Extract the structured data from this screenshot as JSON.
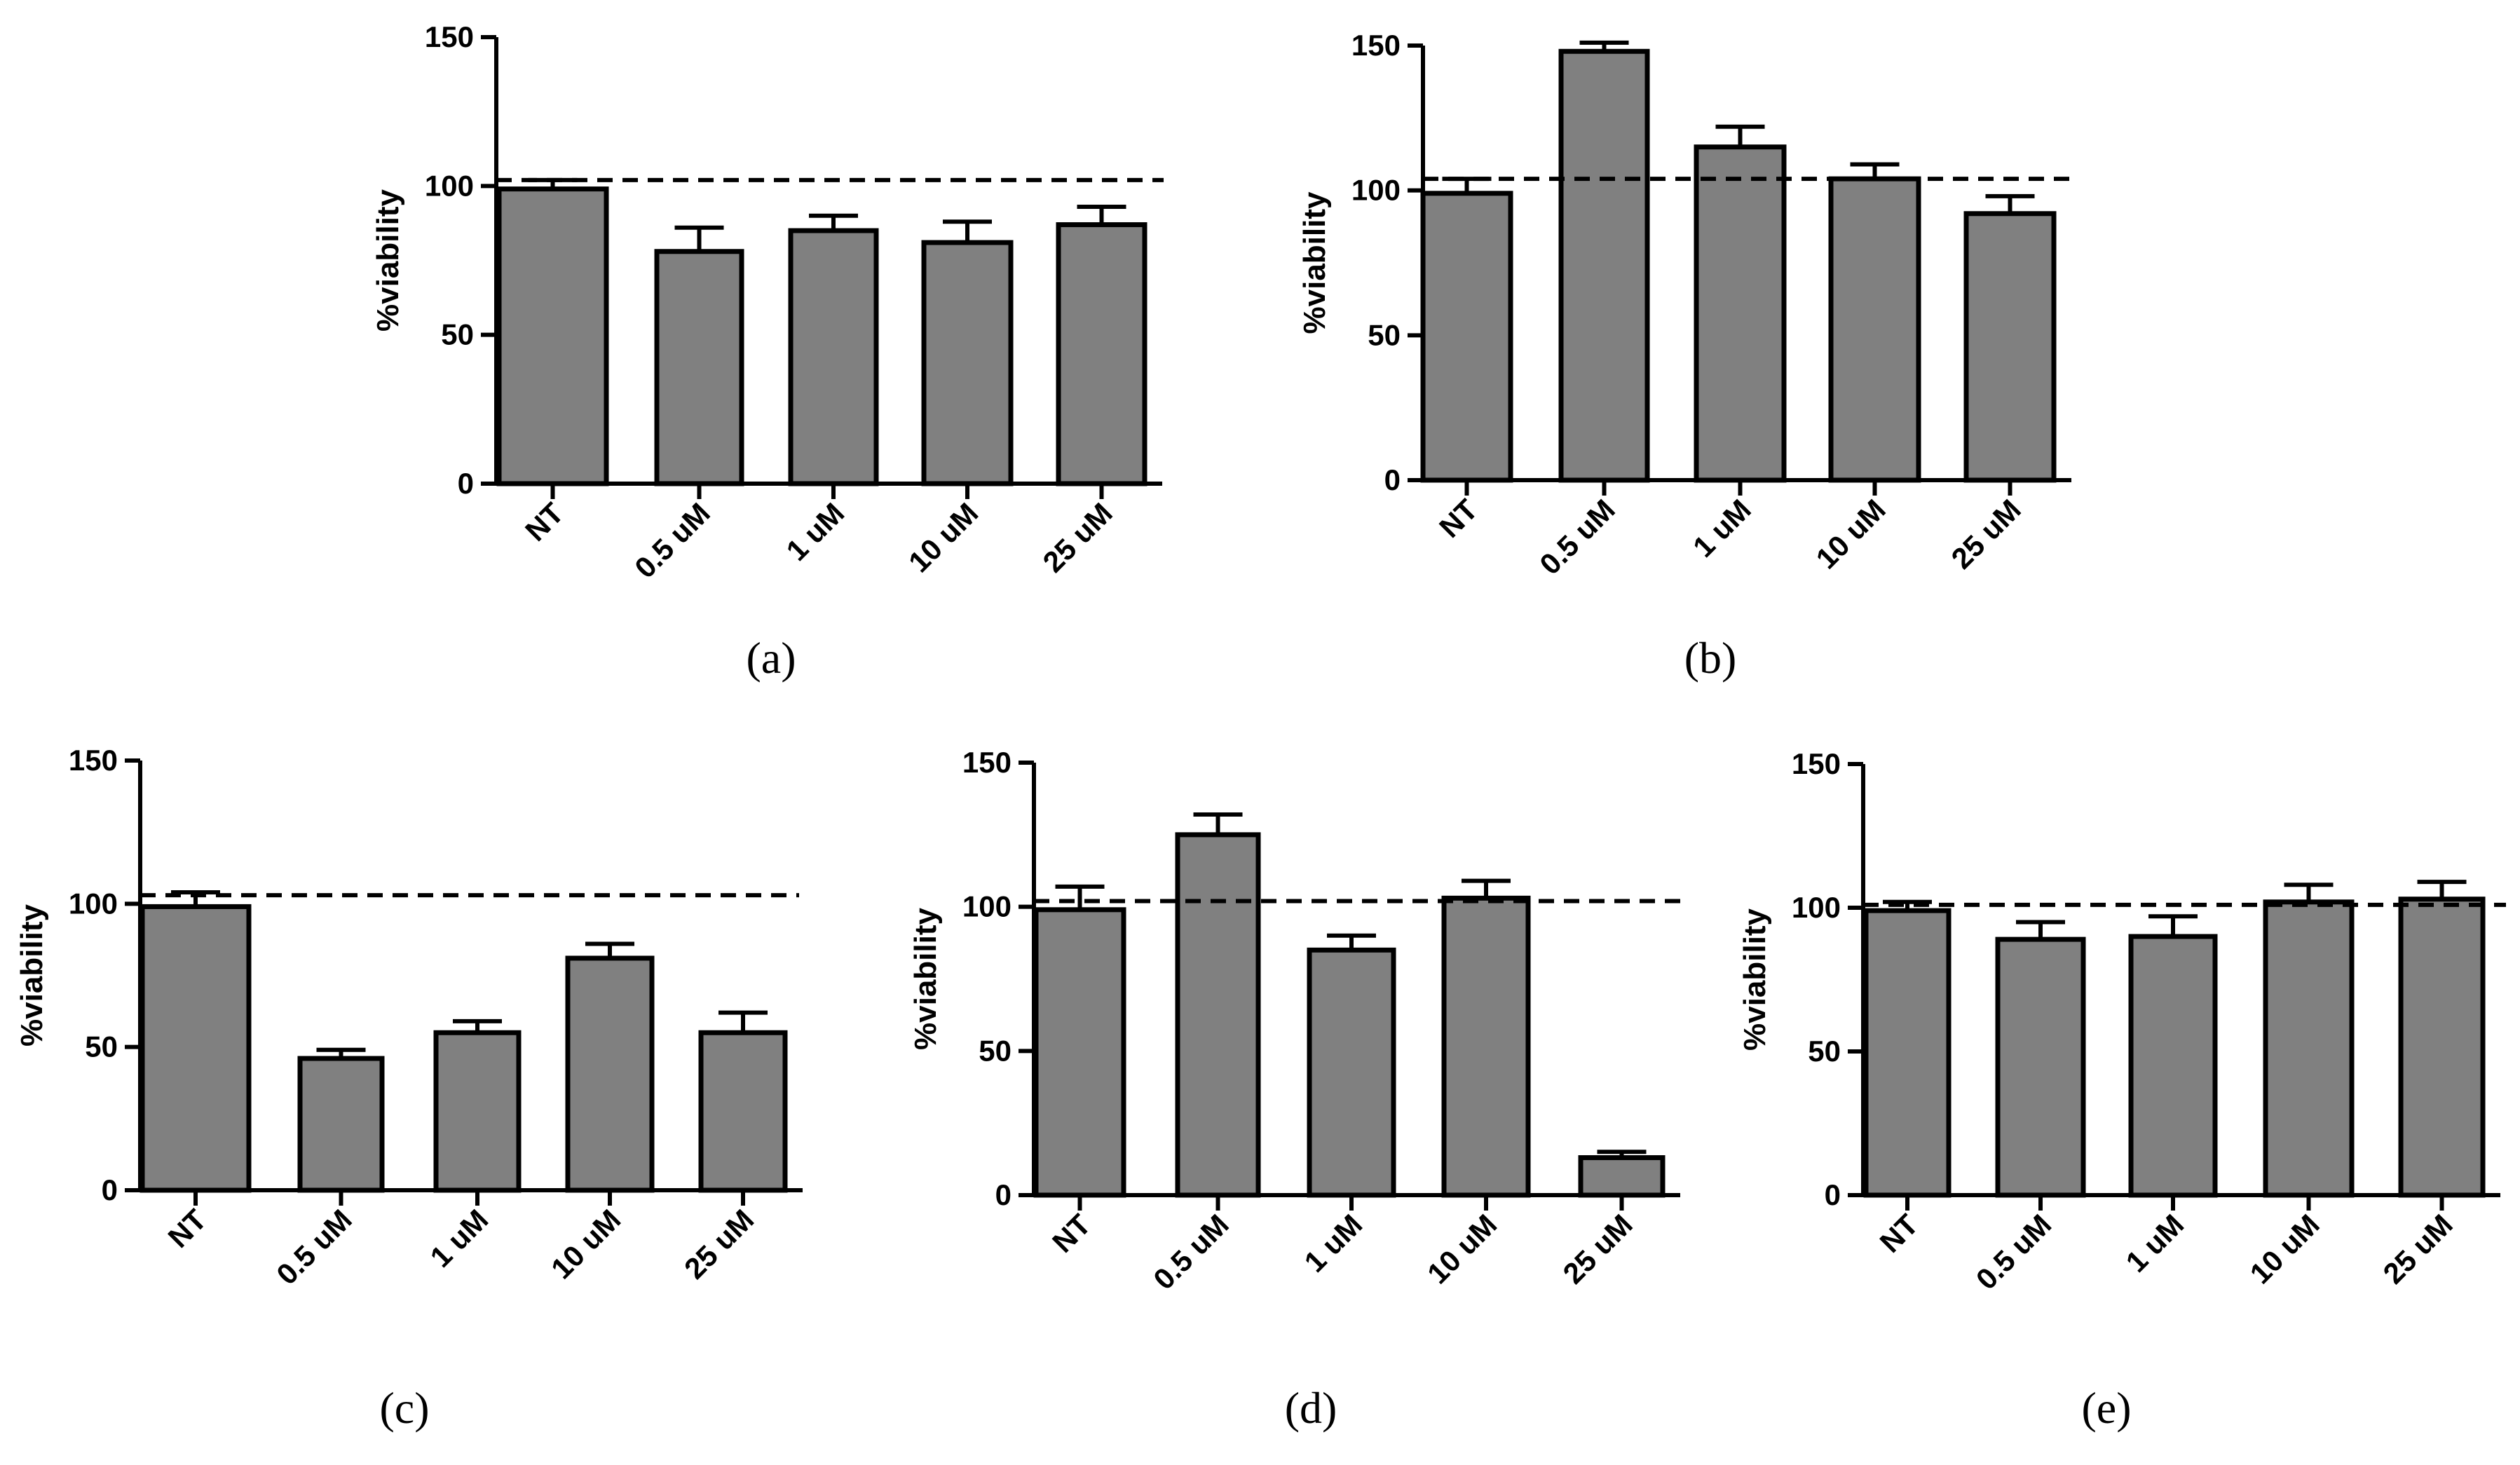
{
  "colors": {
    "bar": "#808080",
    "stroke": "#000000",
    "background": "#ffffff"
  },
  "chart_data": [
    {
      "panel": "(a)",
      "type": "bar",
      "categories": [
        "NT",
        "0.5 uM",
        "1 uM",
        "10 uM",
        "25 uM"
      ],
      "values": [
        99,
        78,
        85,
        81,
        87
      ],
      "errors": [
        3,
        8,
        5,
        7,
        6
      ],
      "reference_line": 102,
      "ylabel": "%viability",
      "xlabel": "",
      "title": "",
      "ylim": [
        0,
        150
      ],
      "yticks": [
        "0",
        "50",
        "100",
        "150"
      ]
    },
    {
      "panel": "(b)",
      "type": "bar",
      "categories": [
        "NT",
        "0.5 uM",
        "1 uM",
        "10 uM",
        "25 uM"
      ],
      "values": [
        99,
        148,
        115,
        104,
        92
      ],
      "errors": [
        5,
        3,
        7,
        5,
        6
      ],
      "reference_line": 104,
      "ylabel": "%viability",
      "xlabel": "",
      "title": "",
      "ylim": [
        0,
        150
      ],
      "yticks": [
        "0",
        "50",
        "100",
        "150"
      ]
    },
    {
      "panel": "(c)",
      "type": "bar",
      "categories": [
        "NT",
        "0.5 uM",
        "1 uM",
        "10 uM",
        "25 uM"
      ],
      "values": [
        99,
        46,
        55,
        81,
        55
      ],
      "errors": [
        5,
        3,
        4,
        5,
        7
      ],
      "reference_line": 103,
      "ylabel": "%viability",
      "xlabel": "",
      "title": "",
      "ylim": [
        0,
        150
      ],
      "yticks": [
        "0",
        "50",
        "100",
        "150"
      ]
    },
    {
      "panel": "(d)",
      "type": "bar",
      "categories": [
        "NT",
        "0.5 uM",
        "1 uM",
        "10 uM",
        "25 uM"
      ],
      "values": [
        99,
        125,
        85,
        103,
        13
      ],
      "errors": [
        8,
        7,
        5,
        6,
        2
      ],
      "reference_line": 102,
      "ylabel": "%viability",
      "xlabel": "",
      "title": "",
      "ylim": [
        0,
        150
      ],
      "yticks": [
        "0",
        "50",
        "100",
        "150"
      ]
    },
    {
      "panel": "(e)",
      "type": "bar",
      "categories": [
        "NT",
        "0.5 uM",
        "1 uM",
        "10 uM",
        "25 uM"
      ],
      "values": [
        99,
        89,
        90,
        102,
        103
      ],
      "errors": [
        3,
        6,
        7,
        6,
        6
      ],
      "reference_line": 101,
      "ylabel": "%viability",
      "xlabel": "",
      "title": "",
      "ylim": [
        0,
        150
      ],
      "yticks": [
        "0",
        "50",
        "100",
        "150"
      ]
    }
  ]
}
